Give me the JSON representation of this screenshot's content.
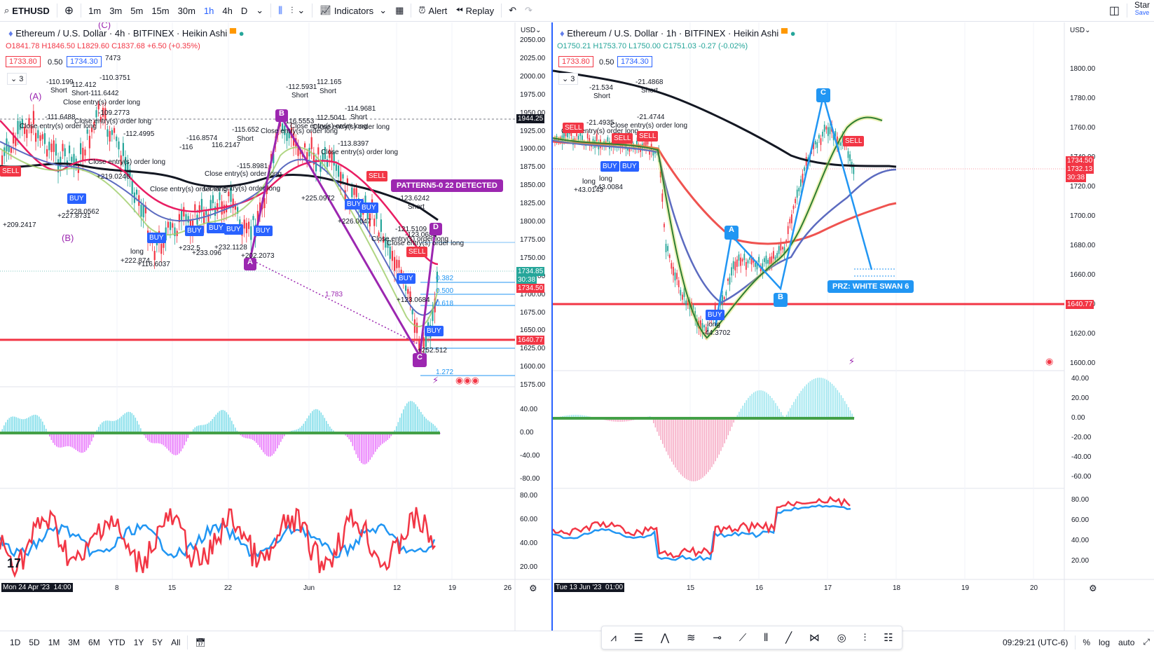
{
  "toolbar": {
    "symbol": "ETHUSD",
    "intervals": [
      "1m",
      "3m",
      "5m",
      "15m",
      "30m",
      "1h",
      "4h",
      "D"
    ],
    "active_interval": "1h",
    "indicators": "Indicators",
    "alert": "Alert",
    "replay": "Replay",
    "star": "Star",
    "save": "Save"
  },
  "left": {
    "title": "Ethereum / U.S. Dollar · 4h · BITFINEX · Heikin Ashi",
    "ohlc": {
      "o": "O1841.78",
      "h": "H1846.50",
      "l": "L1829.60",
      "c": "C1837.68",
      "chg": "+6.50 (+0.35%)"
    },
    "bid": "1733.80",
    "spread": "0.50",
    "ask": "1734.30",
    "count": "3",
    "currency": "USD",
    "axis_prices": [
      "2050.00",
      "2025.00",
      "2000.00",
      "1975.00",
      "1950.00",
      "1925.00",
      "1900.00",
      "1875.00",
      "1850.00",
      "1825.00",
      "1800.00",
      "1775.00",
      "1750.00",
      "1725.00",
      "1700.00",
      "1675.00",
      "1650.00",
      "1625.00",
      "1600.00",
      "1575.00"
    ],
    "price_labels": {
      "crosshair": "1944.25",
      "last": "1734.85",
      "countdown": "30:38",
      "ask": "1734.50",
      "support": "1640.77"
    },
    "macd_axis": [
      "40.00",
      "0.00",
      "-40.00",
      "-80.00"
    ],
    "rsi_axis": [
      "80.00",
      "60.00",
      "40.00",
      "20.00"
    ],
    "time_axis": [
      "Mon 24 Apr '23",
      "14:00",
      "8",
      "15",
      "22",
      "Jun",
      "12",
      "19",
      "26"
    ],
    "pattern_banner": "PATTERN5-0 22 DETECTED",
    "fib": [
      "0.382",
      "0.500",
      "0.618",
      "1.272"
    ],
    "ratio": "1.783",
    "points": [
      "A",
      "B",
      "C",
      "D"
    ],
    "wave_labels": [
      "(A)",
      "(B)",
      "(C)"
    ],
    "trade_labels": [
      {
        "t": "Close entry(s) order long"
      },
      {
        "t": "Short"
      },
      {
        "t": "long"
      },
      {
        "t": "BUY"
      },
      {
        "t": "SELL"
      },
      {
        "t": "-110.199"
      },
      {
        "t": "112.412"
      },
      {
        "t": "-110.3751"
      },
      {
        "t": "Short-111.6442"
      },
      {
        "t": "-109.2773"
      },
      {
        "t": "-111.6488"
      },
      {
        "t": "-112.4995"
      },
      {
        "t": "+219.0246"
      },
      {
        "t": "+227.8731"
      },
      {
        "t": "+228.0562"
      },
      {
        "t": "+209.2417"
      },
      {
        "t": "+222.874"
      },
      {
        "t": "+116.6037"
      },
      {
        "t": "+232.5"
      },
      {
        "t": "+233.096"
      },
      {
        "t": "+232.1128"
      },
      {
        "t": "+202.2073"
      },
      {
        "t": "-116.8574"
      },
      {
        "t": "-116"
      },
      {
        "t": "116.2147"
      },
      {
        "t": "-115.652"
      },
      {
        "t": "-116.5553"
      },
      {
        "t": "-112.5931"
      },
      {
        "t": "112.165"
      },
      {
        "t": "112.5041"
      },
      {
        "t": "-114.9681"
      },
      {
        "t": "-113.8397"
      },
      {
        "t": "-115.8981"
      },
      {
        "t": "+225.0972"
      },
      {
        "t": "+226.0047"
      },
      {
        "t": "-123.6242"
      },
      {
        "t": "-121.5109"
      },
      {
        "t": "-123.0684"
      },
      {
        "t": "+123.0684"
      },
      {
        "t": "+252.512"
      },
      {
        "t": "7473"
      }
    ]
  },
  "right": {
    "title": "Ethereum / U.S. Dollar · 1h · BITFINEX · Heikin Ashi",
    "ohlc": {
      "o": "O1750.21",
      "h": "H1753.70",
      "l": "L1750.00",
      "c": "C1751.03",
      "chg": "-0.27 (-0.02%)"
    },
    "bid": "1733.80",
    "spread": "0.50",
    "ask": "1734.30",
    "count": "3",
    "currency": "USD",
    "axis_prices": [
      "1800.00",
      "1780.00",
      "1760.00",
      "1740.00",
      "1720.00",
      "1700.00",
      "1680.00",
      "1660.00",
      "1640.00",
      "1620.00",
      "1600.00"
    ],
    "price_labels": {
      "last": "1734.50",
      "ask": "1732.13",
      "countdown": "30:38",
      "support": "1640.77"
    },
    "macd_axis": [
      "40.00",
      "20.00",
      "0.00",
      "-20.00",
      "-40.00",
      "-60.00"
    ],
    "rsi_axis": [
      "80.00",
      "60.00",
      "40.00",
      "20.00"
    ],
    "time_axis": [
      "Tue 13 Jun '23",
      "01:00",
      "15",
      "16",
      "17",
      "18",
      "19",
      "20"
    ],
    "prz": "PRZ: WHITE SWAN 6",
    "points": [
      "A",
      "B",
      "C"
    ],
    "trade_labels": [
      {
        "t": "-21.534"
      },
      {
        "t": "Short"
      },
      {
        "t": "-21.4868"
      },
      {
        "t": "Short"
      },
      {
        "t": "-21.4935"
      },
      {
        "t": "-21.4744"
      },
      {
        "t": "Close entry(s) order long"
      },
      {
        "t": "Close entry(s) order long"
      },
      {
        "t": "SELL"
      },
      {
        "t": "BUY"
      },
      {
        "t": "long"
      },
      {
        "t": "+43.0143"
      },
      {
        "t": "+43.0084"
      },
      {
        "t": "-44.3702"
      }
    ]
  },
  "bottom": {
    "ranges": [
      "1D",
      "5D",
      "1M",
      "3M",
      "6M",
      "YTD",
      "1Y",
      "5Y",
      "All"
    ],
    "time": "09:29:21 (UTC-6)",
    "pct": "%",
    "log": "log",
    "auto": "auto"
  },
  "colors": {
    "red": "#f23645",
    "blue": "#2962ff",
    "purple": "#9c27b0",
    "teal": "#26c6da",
    "magenta": "#e040fb",
    "green": "#43a047",
    "black": "#131722"
  }
}
